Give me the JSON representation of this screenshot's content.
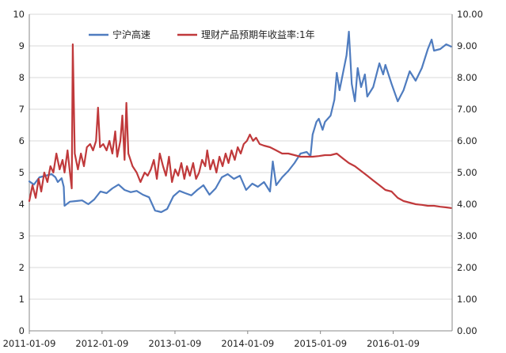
{
  "colors": {
    "series_a": "#4f7cbf",
    "series_b": "#c0393b",
    "grid": "#d9d9d9",
    "axis": "#888888"
  },
  "chart_data": {
    "type": "line",
    "grid": "horizontal",
    "legend_placement": "top-center",
    "x_axis": {
      "type": "date",
      "range": [
        "2011-01-09",
        "2016-10-31"
      ],
      "tick_labels": [
        "2011-01-09",
        "2012-01-09",
        "2013-01-09",
        "2014-01-09",
        "2015-01-09",
        "2016-01-09"
      ]
    },
    "y_left": {
      "range": [
        0,
        10
      ],
      "tick_labels": [
        "0",
        "1",
        "2",
        "3",
        "4",
        "5",
        "6",
        "7",
        "8",
        "9",
        "10"
      ]
    },
    "y_right": {
      "range": [
        0,
        10
      ],
      "tick_labels": [
        "0.00",
        "1.00",
        "2.00",
        "3.00",
        "4.00",
        "5.00",
        "6.00",
        "7.00",
        "8.00",
        "9.00",
        "10.00"
      ]
    },
    "series": [
      {
        "name": "宁沪高速",
        "axis": "left",
        "color": "#4f7cbf",
        "points": [
          [
            "2011-01-09",
            4.72
          ],
          [
            "2011-02-01",
            4.62
          ],
          [
            "2011-03-01",
            4.85
          ],
          [
            "2011-04-01",
            4.9
          ],
          [
            "2011-05-01",
            4.95
          ],
          [
            "2011-05-20",
            4.85
          ],
          [
            "2011-06-01",
            4.7
          ],
          [
            "2011-06-20",
            4.82
          ],
          [
            "2011-07-01",
            4.55
          ],
          [
            "2011-07-05",
            3.95
          ],
          [
            "2011-08-01",
            4.08
          ],
          [
            "2011-09-01",
            4.1
          ],
          [
            "2011-10-01",
            4.12
          ],
          [
            "2011-11-01",
            4.0
          ],
          [
            "2011-12-01",
            4.15
          ],
          [
            "2012-01-01",
            4.4
          ],
          [
            "2012-02-01",
            4.35
          ],
          [
            "2012-03-01",
            4.5
          ],
          [
            "2012-04-01",
            4.62
          ],
          [
            "2012-05-01",
            4.45
          ],
          [
            "2012-06-01",
            4.38
          ],
          [
            "2012-07-01",
            4.42
          ],
          [
            "2012-08-01",
            4.3
          ],
          [
            "2012-09-01",
            4.22
          ],
          [
            "2012-10-01",
            3.8
          ],
          [
            "2012-11-01",
            3.75
          ],
          [
            "2012-12-01",
            3.85
          ],
          [
            "2013-01-01",
            4.25
          ],
          [
            "2013-02-01",
            4.42
          ],
          [
            "2013-03-01",
            4.35
          ],
          [
            "2013-04-01",
            4.28
          ],
          [
            "2013-05-01",
            4.45
          ],
          [
            "2013-06-01",
            4.6
          ],
          [
            "2013-07-01",
            4.3
          ],
          [
            "2013-08-01",
            4.5
          ],
          [
            "2013-09-01",
            4.85
          ],
          [
            "2013-10-01",
            4.95
          ],
          [
            "2013-11-01",
            4.8
          ],
          [
            "2013-12-01",
            4.9
          ],
          [
            "2014-01-01",
            4.45
          ],
          [
            "2014-02-01",
            4.65
          ],
          [
            "2014-03-01",
            4.55
          ],
          [
            "2014-04-01",
            4.7
          ],
          [
            "2014-05-01",
            4.4
          ],
          [
            "2014-05-15",
            5.35
          ],
          [
            "2014-06-01",
            4.6
          ],
          [
            "2014-07-01",
            4.85
          ],
          [
            "2014-08-01",
            5.05
          ],
          [
            "2014-09-01",
            5.3
          ],
          [
            "2014-10-01",
            5.6
          ],
          [
            "2014-11-01",
            5.65
          ],
          [
            "2014-11-20",
            5.52
          ],
          [
            "2014-12-01",
            6.2
          ],
          [
            "2014-12-20",
            6.6
          ],
          [
            "2015-01-01",
            6.7
          ],
          [
            "2015-01-20",
            6.35
          ],
          [
            "2015-02-01",
            6.6
          ],
          [
            "2015-03-01",
            6.8
          ],
          [
            "2015-03-20",
            7.3
          ],
          [
            "2015-04-01",
            8.15
          ],
          [
            "2015-04-15",
            7.6
          ],
          [
            "2015-05-01",
            8.1
          ],
          [
            "2015-05-20",
            8.7
          ],
          [
            "2015-06-01",
            9.45
          ],
          [
            "2015-06-15",
            7.8
          ],
          [
            "2015-07-01",
            7.25
          ],
          [
            "2015-07-15",
            8.3
          ],
          [
            "2015-08-01",
            7.7
          ],
          [
            "2015-08-20",
            8.1
          ],
          [
            "2015-09-01",
            7.4
          ],
          [
            "2015-10-01",
            7.7
          ],
          [
            "2015-11-01",
            8.45
          ],
          [
            "2015-11-20",
            8.1
          ],
          [
            "2015-12-01",
            8.4
          ],
          [
            "2016-01-01",
            7.8
          ],
          [
            "2016-02-01",
            7.25
          ],
          [
            "2016-03-01",
            7.6
          ],
          [
            "2016-04-01",
            8.2
          ],
          [
            "2016-05-01",
            7.9
          ],
          [
            "2016-06-01",
            8.3
          ],
          [
            "2016-07-01",
            8.9
          ],
          [
            "2016-07-20",
            9.2
          ],
          [
            "2016-08-01",
            8.85
          ],
          [
            "2016-09-01",
            8.9
          ],
          [
            "2016-10-01",
            9.05
          ],
          [
            "2016-10-25",
            8.98
          ]
        ]
      },
      {
        "name": "理财产品预期年收益率:1年",
        "axis": "right",
        "color": "#c0393b",
        "points": [
          [
            "2011-01-09",
            4.1
          ],
          [
            "2011-01-25",
            4.6
          ],
          [
            "2011-02-10",
            4.2
          ],
          [
            "2011-02-25",
            4.8
          ],
          [
            "2011-03-10",
            4.4
          ],
          [
            "2011-03-25",
            5.0
          ],
          [
            "2011-04-10",
            4.7
          ],
          [
            "2011-04-25",
            5.2
          ],
          [
            "2011-05-10",
            5.0
          ],
          [
            "2011-05-25",
            5.6
          ],
          [
            "2011-06-10",
            5.1
          ],
          [
            "2011-06-25",
            5.4
          ],
          [
            "2011-07-05",
            5.0
          ],
          [
            "2011-07-20",
            5.7
          ],
          [
            "2011-08-01",
            5.0
          ],
          [
            "2011-08-10",
            4.5
          ],
          [
            "2011-08-15",
            9.05
          ],
          [
            "2011-08-25",
            5.6
          ],
          [
            "2011-09-10",
            5.1
          ],
          [
            "2011-09-25",
            5.6
          ],
          [
            "2011-10-10",
            5.2
          ],
          [
            "2011-10-25",
            5.8
          ],
          [
            "2011-11-10",
            5.9
          ],
          [
            "2011-11-25",
            5.7
          ],
          [
            "2011-12-10",
            6.0
          ],
          [
            "2011-12-20",
            7.05
          ],
          [
            "2011-12-30",
            5.8
          ],
          [
            "2012-01-15",
            5.9
          ],
          [
            "2012-02-01",
            5.7
          ],
          [
            "2012-02-15",
            6.0
          ],
          [
            "2012-03-01",
            5.6
          ],
          [
            "2012-03-15",
            6.3
          ],
          [
            "2012-03-25",
            5.5
          ],
          [
            "2012-04-10",
            6.0
          ],
          [
            "2012-04-20",
            6.8
          ],
          [
            "2012-05-01",
            5.4
          ],
          [
            "2012-05-10",
            7.2
          ],
          [
            "2012-05-20",
            5.6
          ],
          [
            "2012-06-10",
            5.2
          ],
          [
            "2012-07-01",
            5.0
          ],
          [
            "2012-07-20",
            4.7
          ],
          [
            "2012-08-10",
            5.0
          ],
          [
            "2012-08-25",
            4.9
          ],
          [
            "2012-09-10",
            5.1
          ],
          [
            "2012-09-25",
            5.4
          ],
          [
            "2012-10-10",
            4.8
          ],
          [
            "2012-10-25",
            5.6
          ],
          [
            "2012-11-10",
            5.2
          ],
          [
            "2012-11-25",
            4.9
          ],
          [
            "2012-12-10",
            5.5
          ],
          [
            "2012-12-25",
            4.7
          ],
          [
            "2013-01-10",
            5.1
          ],
          [
            "2013-01-25",
            4.9
          ],
          [
            "2013-02-10",
            5.3
          ],
          [
            "2013-02-25",
            4.8
          ],
          [
            "2013-03-10",
            5.2
          ],
          [
            "2013-03-25",
            4.9
          ],
          [
            "2013-04-10",
            5.3
          ],
          [
            "2013-04-25",
            4.8
          ],
          [
            "2013-05-10",
            5.0
          ],
          [
            "2013-05-25",
            5.4
          ],
          [
            "2013-06-10",
            5.2
          ],
          [
            "2013-06-20",
            5.7
          ],
          [
            "2013-07-05",
            5.1
          ],
          [
            "2013-07-20",
            5.4
          ],
          [
            "2013-08-05",
            5.0
          ],
          [
            "2013-08-20",
            5.5
          ],
          [
            "2013-09-05",
            5.2
          ],
          [
            "2013-09-20",
            5.6
          ],
          [
            "2013-10-05",
            5.3
          ],
          [
            "2013-10-20",
            5.7
          ],
          [
            "2013-11-05",
            5.4
          ],
          [
            "2013-11-20",
            5.8
          ],
          [
            "2013-12-05",
            5.6
          ],
          [
            "2013-12-20",
            5.9
          ],
          [
            "2014-01-05",
            6.0
          ],
          [
            "2014-01-20",
            6.2
          ],
          [
            "2014-02-05",
            6.0
          ],
          [
            "2014-02-20",
            6.1
          ],
          [
            "2014-03-10",
            5.9
          ],
          [
            "2014-04-01",
            5.85
          ],
          [
            "2014-05-01",
            5.8
          ],
          [
            "2014-06-01",
            5.7
          ],
          [
            "2014-07-01",
            5.6
          ],
          [
            "2014-08-01",
            5.6
          ],
          [
            "2014-09-01",
            5.55
          ],
          [
            "2014-10-01",
            5.5
          ],
          [
            "2014-11-01",
            5.5
          ],
          [
            "2014-12-01",
            5.5
          ],
          [
            "2015-01-01",
            5.52
          ],
          [
            "2015-02-01",
            5.55
          ],
          [
            "2015-03-01",
            5.55
          ],
          [
            "2015-04-01",
            5.6
          ],
          [
            "2015-05-01",
            5.45
          ],
          [
            "2015-06-01",
            5.3
          ],
          [
            "2015-07-01",
            5.2
          ],
          [
            "2015-08-01",
            5.05
          ],
          [
            "2015-09-01",
            4.9
          ],
          [
            "2015-10-01",
            4.75
          ],
          [
            "2015-11-01",
            4.6
          ],
          [
            "2015-12-01",
            4.45
          ],
          [
            "2016-01-01",
            4.4
          ],
          [
            "2016-02-01",
            4.2
          ],
          [
            "2016-03-01",
            4.1
          ],
          [
            "2016-04-01",
            4.05
          ],
          [
            "2016-05-01",
            4.0
          ],
          [
            "2016-06-01",
            3.98
          ],
          [
            "2016-07-01",
            3.95
          ],
          [
            "2016-08-01",
            3.95
          ],
          [
            "2016-09-01",
            3.92
          ],
          [
            "2016-10-01",
            3.9
          ],
          [
            "2016-10-25",
            3.88
          ]
        ]
      }
    ]
  }
}
